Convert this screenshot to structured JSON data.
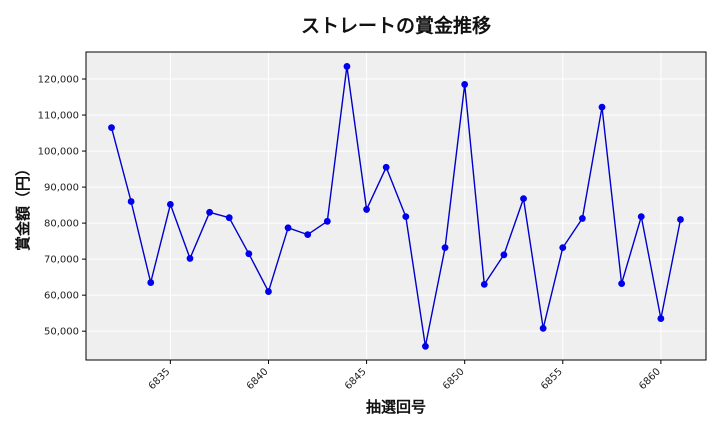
{
  "chart_data": {
    "type": "line",
    "title": "ストレートの賞金推移",
    "xlabel": "抽選回号",
    "ylabel": "賞金額（円）",
    "xlim": [
      6830.7,
      6862.3
    ],
    "ylim": [
      42000,
      127500
    ],
    "x_ticks": [
      6835,
      6840,
      6845,
      6850,
      6855,
      6860
    ],
    "y_ticks": [
      50000,
      60000,
      70000,
      80000,
      90000,
      100000,
      110000,
      120000
    ],
    "x_tick_labels": [
      "6835",
      "6840",
      "6845",
      "6850",
      "6855",
      "6860"
    ],
    "y_tick_labels": [
      "50,000",
      "60,000",
      "70,000",
      "80,000",
      "90,000",
      "100,000",
      "110,000",
      "120,000"
    ],
    "grid": true,
    "colors": {
      "line": "#0000cc",
      "marker": "#0000ee",
      "plot_bg": "#efefef",
      "grid": "#ffffff"
    },
    "series": [
      {
        "x": [
          6832,
          6833,
          6834,
          6835,
          6836,
          6837,
          6838,
          6839,
          6840,
          6841,
          6842,
          6843,
          6844,
          6845,
          6846,
          6847,
          6848,
          6849,
          6850,
          6851,
          6852,
          6853,
          6854,
          6855,
          6856,
          6857,
          6858,
          6859,
          6860,
          6861
        ],
        "y": [
          106500,
          86000,
          63500,
          85200,
          70200,
          83000,
          81500,
          71500,
          61000,
          78700,
          76800,
          80500,
          123500,
          83800,
          95500,
          81800,
          45800,
          73200,
          118500,
          63000,
          71200,
          86800,
          50800,
          73200,
          81300,
          112200,
          63200,
          81800,
          53500,
          81000
        ]
      }
    ]
  }
}
